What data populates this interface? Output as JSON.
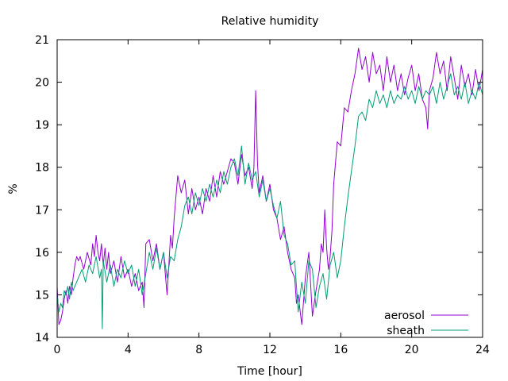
{
  "chart_data": {
    "type": "line",
    "title": "Relative humidity",
    "xlabel": "Time [hour]",
    "ylabel": "%",
    "xlim": [
      0,
      24
    ],
    "ylim": [
      14,
      21
    ],
    "x_ticks": [
      0,
      4,
      8,
      12,
      16,
      20,
      24
    ],
    "y_ticks": [
      14,
      15,
      16,
      17,
      18,
      19,
      20,
      21
    ],
    "grid": false,
    "legend_position": "bottom-right",
    "series": [
      {
        "name": "aerosol",
        "color": "#9400d3",
        "x": [
          0,
          0.1,
          0.2,
          0.3,
          0.4,
          0.5,
          0.6,
          0.7,
          0.8,
          0.9,
          1.0,
          1.1,
          1.2,
          1.3,
          1.5,
          1.7,
          1.9,
          2.0,
          2.1,
          2.2,
          2.3,
          2.4,
          2.5,
          2.6,
          2.7,
          2.8,
          2.9,
          3.0,
          3.2,
          3.4,
          3.6,
          3.8,
          4.0,
          4.2,
          4.4,
          4.6,
          4.8,
          4.9,
          5.0,
          5.2,
          5.4,
          5.6,
          5.8,
          6.0,
          6.1,
          6.2,
          6.3,
          6.4,
          6.5,
          6.6,
          6.7,
          6.8,
          7.0,
          7.2,
          7.4,
          7.6,
          7.8,
          8.0,
          8.2,
          8.4,
          8.6,
          8.8,
          9.0,
          9.2,
          9.4,
          9.6,
          9.8,
          10.0,
          10.2,
          10.4,
          10.6,
          10.8,
          11.0,
          11.1,
          11.2,
          11.3,
          11.4,
          11.6,
          11.8,
          12.0,
          12.2,
          12.4,
          12.6,
          12.8,
          13.0,
          13.2,
          13.4,
          13.5,
          13.6,
          13.8,
          14.0,
          14.2,
          14.4,
          14.6,
          14.8,
          14.9,
          15.0,
          15.1,
          15.2,
          15.3,
          15.4,
          15.5,
          15.6,
          15.8,
          16.0,
          16.2,
          16.4,
          16.6,
          16.8,
          17.0,
          17.2,
          17.4,
          17.6,
          17.8,
          18.0,
          18.2,
          18.4,
          18.6,
          18.8,
          19.0,
          19.2,
          19.4,
          19.6,
          19.8,
          20.0,
          20.2,
          20.4,
          20.6,
          20.8,
          20.9,
          21.0,
          21.2,
          21.4,
          21.6,
          21.8,
          22.0,
          22.2,
          22.4,
          22.6,
          22.8,
          23.0,
          23.2,
          23.4,
          23.6,
          23.8,
          24.0
        ],
        "y": [
          15.2,
          14.3,
          14.4,
          14.6,
          14.9,
          15.1,
          14.8,
          15.2,
          15.0,
          15.4,
          15.7,
          15.9,
          15.8,
          15.9,
          15.6,
          16.0,
          15.7,
          16.2,
          15.9,
          16.4,
          16.0,
          15.8,
          16.2,
          15.7,
          16.1,
          15.6,
          16.0,
          15.5,
          15.8,
          15.3,
          15.9,
          15.4,
          15.6,
          15.2,
          15.5,
          15.1,
          15.3,
          14.7,
          16.2,
          16.3,
          15.8,
          16.2,
          15.6,
          16.0,
          15.5,
          15.0,
          15.7,
          16.4,
          16.1,
          16.8,
          17.3,
          17.8,
          17.4,
          17.7,
          16.9,
          17.5,
          17.0,
          17.3,
          16.9,
          17.5,
          17.2,
          17.8,
          17.3,
          17.9,
          17.6,
          17.9,
          18.2,
          18.1,
          17.6,
          18.3,
          17.8,
          18.0,
          17.5,
          18.0,
          19.8,
          18.1,
          17.4,
          17.8,
          17.2,
          17.6,
          17.0,
          16.8,
          16.3,
          16.6,
          16.0,
          15.6,
          15.4,
          14.8,
          15.0,
          14.3,
          15.4,
          16.0,
          14.5,
          15.1,
          15.6,
          16.2,
          16.0,
          17.0,
          16.1,
          15.6,
          15.9,
          16.5,
          17.6,
          18.6,
          18.5,
          19.4,
          19.3,
          19.8,
          20.2,
          20.8,
          20.3,
          20.6,
          20.0,
          20.7,
          20.2,
          20.4,
          19.8,
          20.6,
          20.0,
          20.4,
          19.8,
          20.2,
          19.7,
          20.1,
          20.4,
          19.8,
          20.2,
          19.6,
          19.4,
          18.9,
          19.8,
          20.1,
          20.7,
          20.2,
          20.5,
          19.8,
          20.6,
          20.1,
          19.6,
          20.4,
          19.9,
          20.2,
          19.7,
          20.3,
          19.8,
          20.3
        ]
      },
      {
        "name": "sheath",
        "color": "#009e73",
        "x": [
          0,
          0.1,
          0.2,
          0.3,
          0.4,
          0.5,
          0.6,
          0.7,
          0.8,
          0.9,
          1.0,
          1.2,
          1.4,
          1.6,
          1.8,
          2.0,
          2.2,
          2.4,
          2.5,
          2.55,
          2.6,
          2.8,
          3.0,
          3.2,
          3.4,
          3.6,
          3.8,
          4.0,
          4.2,
          4.4,
          4.6,
          4.8,
          5.0,
          5.2,
          5.4,
          5.6,
          5.8,
          6.0,
          6.2,
          6.4,
          6.6,
          6.8,
          7.0,
          7.2,
          7.4,
          7.6,
          7.8,
          8.0,
          8.2,
          8.4,
          8.6,
          8.8,
          9.0,
          9.2,
          9.4,
          9.6,
          9.8,
          10.0,
          10.2,
          10.4,
          10.6,
          10.8,
          11.0,
          11.2,
          11.4,
          11.6,
          11.8,
          12.0,
          12.2,
          12.4,
          12.6,
          12.8,
          13.0,
          13.2,
          13.4,
          13.6,
          13.8,
          14.0,
          14.2,
          14.4,
          14.6,
          14.8,
          15.0,
          15.2,
          15.4,
          15.6,
          15.8,
          16.0,
          16.2,
          16.4,
          16.6,
          16.8,
          17.0,
          17.2,
          17.4,
          17.6,
          17.8,
          18.0,
          18.2,
          18.4,
          18.6,
          18.8,
          19.0,
          19.2,
          19.4,
          19.6,
          19.8,
          20.0,
          20.2,
          20.4,
          20.6,
          20.8,
          21.0,
          21.2,
          21.4,
          21.6,
          21.8,
          22.0,
          22.2,
          22.4,
          22.6,
          22.8,
          23.0,
          23.2,
          23.4,
          23.6,
          23.8,
          24.0
        ],
        "y": [
          15.0,
          14.6,
          14.8,
          14.7,
          15.1,
          15.0,
          15.2,
          14.9,
          15.3,
          15.1,
          15.2,
          15.4,
          15.6,
          15.3,
          15.7,
          15.5,
          15.9,
          15.4,
          15.6,
          14.2,
          15.8,
          15.3,
          15.7,
          15.2,
          15.6,
          15.4,
          15.8,
          15.5,
          15.7,
          15.2,
          15.6,
          15.0,
          15.5,
          16.0,
          15.6,
          16.1,
          15.6,
          16.0,
          15.4,
          15.9,
          15.8,
          16.3,
          16.6,
          17.1,
          17.3,
          16.9,
          17.4,
          17.1,
          17.5,
          17.2,
          17.6,
          17.3,
          17.7,
          17.4,
          17.9,
          17.6,
          18.0,
          18.2,
          17.8,
          18.5,
          17.6,
          18.1,
          17.7,
          17.9,
          17.3,
          17.7,
          17.2,
          17.5,
          17.1,
          16.8,
          17.2,
          16.4,
          16.2,
          15.7,
          15.8,
          14.6,
          15.3,
          14.8,
          15.8,
          15.6,
          14.7,
          15.2,
          15.5,
          14.9,
          15.7,
          16.0,
          15.4,
          15.8,
          16.6,
          17.3,
          17.9,
          18.5,
          19.2,
          19.3,
          19.1,
          19.6,
          19.4,
          19.8,
          19.5,
          19.7,
          19.4,
          19.8,
          19.5,
          19.7,
          19.6,
          19.9,
          19.6,
          19.8,
          19.5,
          19.9,
          19.6,
          19.8,
          19.7,
          19.9,
          19.5,
          20.0,
          19.6,
          19.9,
          20.2,
          19.7,
          19.9,
          19.6,
          20.0,
          19.5,
          19.8,
          19.6,
          20.0,
          19.7
        ]
      }
    ]
  }
}
